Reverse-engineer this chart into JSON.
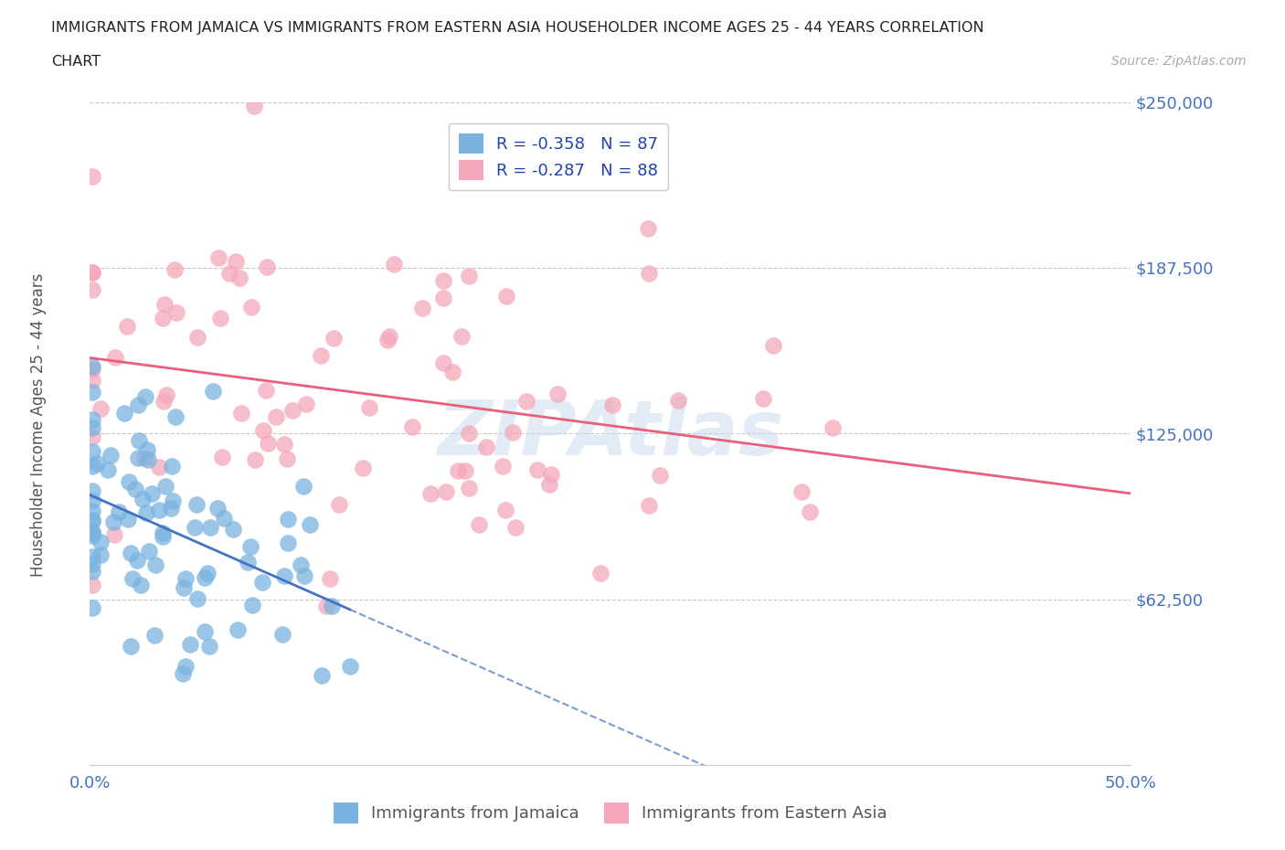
{
  "title_line1": "IMMIGRANTS FROM JAMAICA VS IMMIGRANTS FROM EASTERN ASIA HOUSEHOLDER INCOME AGES 25 - 44 YEARS CORRELATION",
  "title_line2": "CHART",
  "source_text": "Source: ZipAtlas.com",
  "watermark": "ZIPAtlas",
  "ylabel": "Householder Income Ages 25 - 44 years",
  "xlim": [
    0.0,
    0.5
  ],
  "ylim": [
    0,
    250000
  ],
  "yticks": [
    0,
    62500,
    125000,
    187500,
    250000
  ],
  "ytick_labels": [
    "",
    "$62,500",
    "$125,000",
    "$187,500",
    "$250,000"
  ],
  "xticks": [
    0.0,
    0.1,
    0.2,
    0.3,
    0.4,
    0.5
  ],
  "xtick_labels": [
    "0.0%",
    "",
    "",
    "",
    "",
    "50.0%"
  ],
  "jamaica_R": -0.358,
  "jamaica_N": 87,
  "eastern_asia_R": -0.287,
  "eastern_asia_N": 88,
  "jamaica_color": "#7ab3e0",
  "eastern_asia_color": "#f4a7ba",
  "jamaica_line_color": "#4472c4",
  "eastern_asia_line_color": "#e8607a",
  "background_color": "#ffffff",
  "grid_color": "#c8c8c8",
  "tick_color": "#4472c4",
  "title_color": "#222222",
  "legend_upper_loc": "upper center",
  "legend_bottom_jamaica": "Immigrants from Jamaica",
  "legend_bottom_ea": "Immigrants from Eastern Asia"
}
